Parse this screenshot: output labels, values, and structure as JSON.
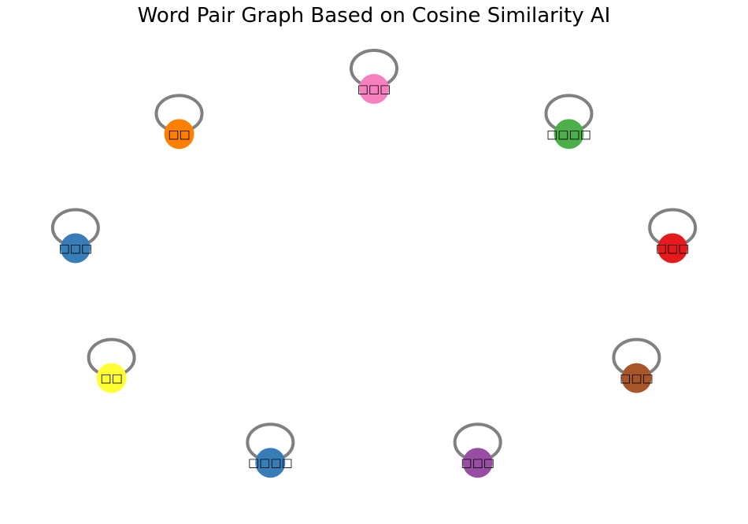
{
  "title": "Word Pair Graph Based on Cosine Similarity AI",
  "edge_color": "#808080",
  "nodes": [
    {
      "label": "□□□",
      "color": "#f781bf"
    },
    {
      "label": "□□□□",
      "color": "#4daf4a"
    },
    {
      "label": "□□□",
      "color": "#e41a1c"
    },
    {
      "label": "□□□",
      "color": "#a65628"
    },
    {
      "label": "□□□",
      "color": "#984ea3"
    },
    {
      "label": "□□□□",
      "color": "#377eb8"
    },
    {
      "label": "□□",
      "color": "#ffff33"
    },
    {
      "label": "□□□",
      "color": "#377eb8"
    },
    {
      "label": "□□",
      "color": "#ff7f00"
    }
  ]
}
